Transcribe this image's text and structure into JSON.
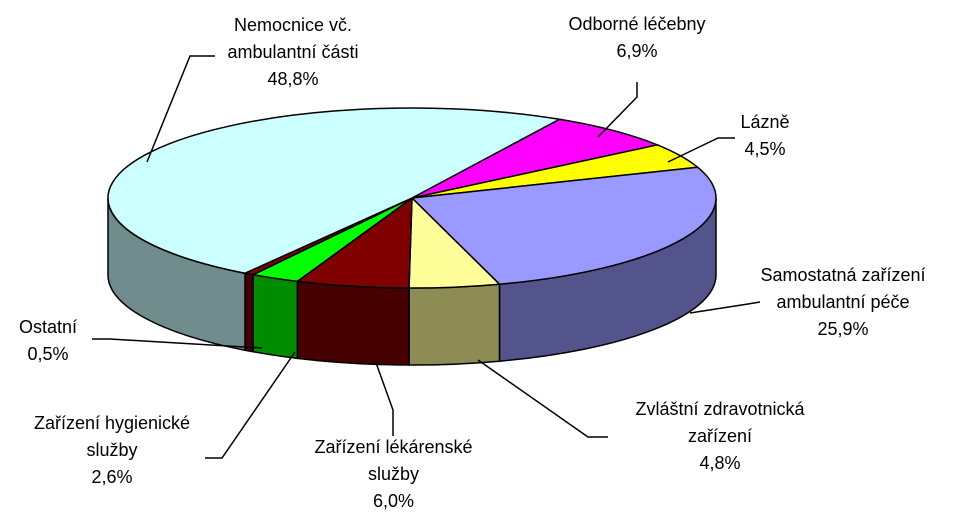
{
  "chart_data": {
    "type": "pie",
    "categories": [
      "Odborné léčebny",
      "Lázně",
      "Samostatná zařízení ambulantní péče",
      "Zvláštní zdravotnická zařízení",
      "Zařízení lékárenské služby",
      "Zařízení hygienické služby",
      "Ostatní",
      "Nemocnice vč. ambulantní části"
    ],
    "values": [
      6.9,
      4.5,
      25.9,
      4.8,
      6.0,
      2.6,
      0.5,
      48.8
    ],
    "value_labels": [
      "6,9%",
      "4,5%",
      "25,9%",
      "4,8%",
      "6,0%",
      "2,6%",
      "0,5%",
      "48,8%"
    ],
    "colors": [
      "#ff00ff",
      "#ffff00",
      "#9999ff",
      "#ffff99",
      "#800000",
      "#00ff00",
      "#800000",
      "#ccffff"
    ]
  }
}
